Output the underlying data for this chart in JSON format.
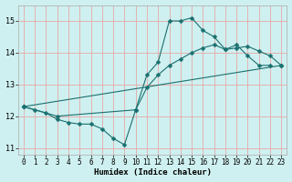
{
  "xlabel": "Humidex (Indice chaleur)",
  "bg_color": "#cff0f0",
  "grid_color": "#e8a8a8",
  "line_color": "#1a7070",
  "xlim": [
    -0.5,
    23.5
  ],
  "ylim": [
    10.8,
    15.5
  ],
  "yticks": [
    11,
    12,
    13,
    14,
    15
  ],
  "xticks": [
    0,
    1,
    2,
    3,
    4,
    5,
    6,
    7,
    8,
    9,
    10,
    11,
    12,
    13,
    14,
    15,
    16,
    17,
    18,
    19,
    20,
    21,
    22,
    23
  ],
  "line1_x": [
    0,
    1,
    2,
    3,
    4,
    5,
    6,
    7,
    8,
    9,
    10,
    11,
    12,
    13,
    14,
    15,
    16,
    17,
    18,
    19,
    20,
    21,
    22
  ],
  "line1_y": [
    12.3,
    12.2,
    12.1,
    11.9,
    11.8,
    11.75,
    11.75,
    11.6,
    11.3,
    11.1,
    12.2,
    13.3,
    13.7,
    15.0,
    15.0,
    15.1,
    14.7,
    14.5,
    14.1,
    14.25,
    13.9,
    13.6,
    13.6
  ],
  "line2_x": [
    0,
    3,
    10,
    11,
    12,
    13,
    14,
    15,
    16,
    17,
    18,
    19,
    20,
    21,
    22,
    23
  ],
  "line2_y": [
    12.3,
    12.0,
    12.2,
    12.9,
    13.3,
    13.6,
    13.8,
    14.0,
    14.15,
    14.25,
    14.1,
    14.15,
    14.2,
    14.05,
    13.9,
    13.6
  ],
  "line3_x": [
    0,
    23
  ],
  "line3_y": [
    12.3,
    13.6
  ],
  "markersize": 2.5
}
